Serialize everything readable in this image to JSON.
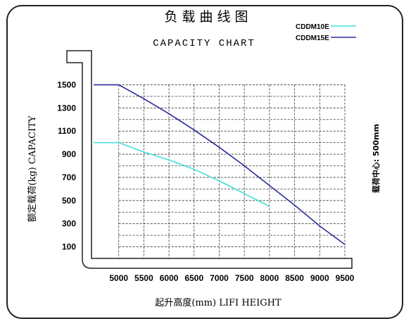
{
  "chart_data": {
    "type": "line",
    "title": "负载曲线图",
    "subtitle": "CAPACITY CHART",
    "xlabel": "起升高度(mm)    LIFI HEIGHT",
    "ylabel": "额定载荷(kg)   CAPACITY",
    "annotation": "载荷中心: 500mm",
    "x_ticks": [
      5000,
      5500,
      6000,
      6500,
      7000,
      7500,
      8000,
      8500,
      9000,
      9500
    ],
    "y_ticks": [
      100,
      300,
      500,
      700,
      900,
      1100,
      1300,
      1500
    ],
    "xlim": [
      4500,
      9500
    ],
    "ylim": [
      0,
      1600
    ],
    "grid": true,
    "legend_position": "top-right",
    "series": [
      {
        "name": "CDDM10E",
        "color": "#40e0d8",
        "x": [
          4500,
          5000,
          5500,
          6000,
          6500,
          7000,
          7500,
          8000
        ],
        "y": [
          1000,
          1000,
          920,
          850,
          770,
          670,
          560,
          450
        ]
      },
      {
        "name": "CDDM15E",
        "color": "#2b2b9a",
        "x": [
          4500,
          5000,
          5500,
          6000,
          6500,
          7000,
          7500,
          8000,
          8500,
          9000,
          9500
        ],
        "y": [
          1500,
          1500,
          1380,
          1250,
          1110,
          960,
          800,
          630,
          460,
          280,
          120
        ]
      }
    ]
  }
}
